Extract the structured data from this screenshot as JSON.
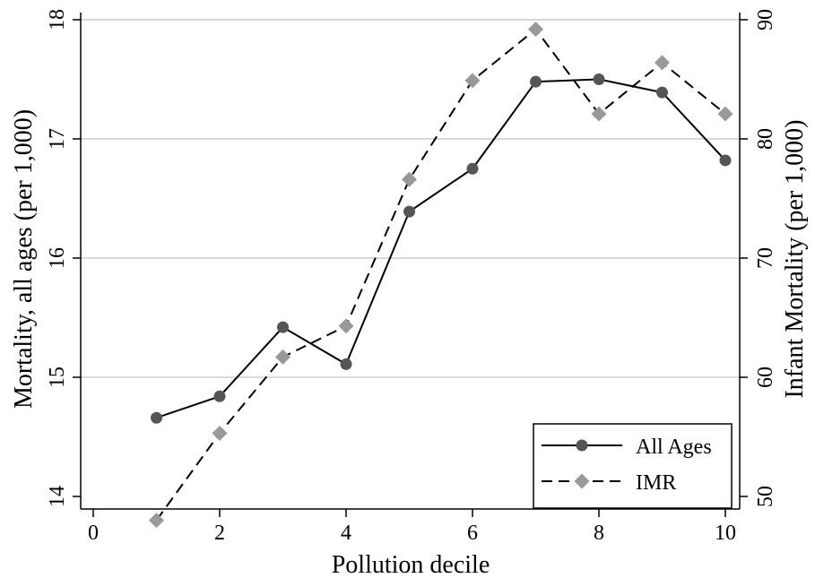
{
  "chart_data": {
    "type": "line",
    "title": "",
    "xlabel": "Pollution decile",
    "ylabel_left": "Mortality, all ages (per 1,000)",
    "ylabel_right": "Infant Mortality (per 1,000)",
    "x": [
      1,
      2,
      3,
      4,
      5,
      6,
      7,
      8,
      9,
      10
    ],
    "xlim": [
      0,
      10
    ],
    "xticks": [
      0,
      2,
      4,
      6,
      8,
      10
    ],
    "ylim_left": [
      14,
      18
    ],
    "yticks_left": [
      14,
      15,
      16,
      17,
      18
    ],
    "ylim_right": [
      50,
      90
    ],
    "yticks_right": [
      50,
      60,
      70,
      80,
      90
    ],
    "grid": true,
    "legend_position": "bottom-right",
    "series": [
      {
        "name": "All Ages",
        "axis": "left",
        "line_style": "solid",
        "marker": "circle",
        "color": "#555555",
        "values": [
          14.66,
          14.84,
          15.42,
          15.11,
          16.39,
          16.75,
          17.48,
          17.5,
          17.39,
          16.82
        ]
      },
      {
        "name": "IMR",
        "axis": "right",
        "line_style": "dashed",
        "marker": "diamond",
        "color": "#999999",
        "values": [
          48.0,
          55.3,
          61.7,
          64.3,
          76.6,
          84.9,
          89.2,
          82.1,
          86.4,
          82.1
        ]
      }
    ]
  }
}
